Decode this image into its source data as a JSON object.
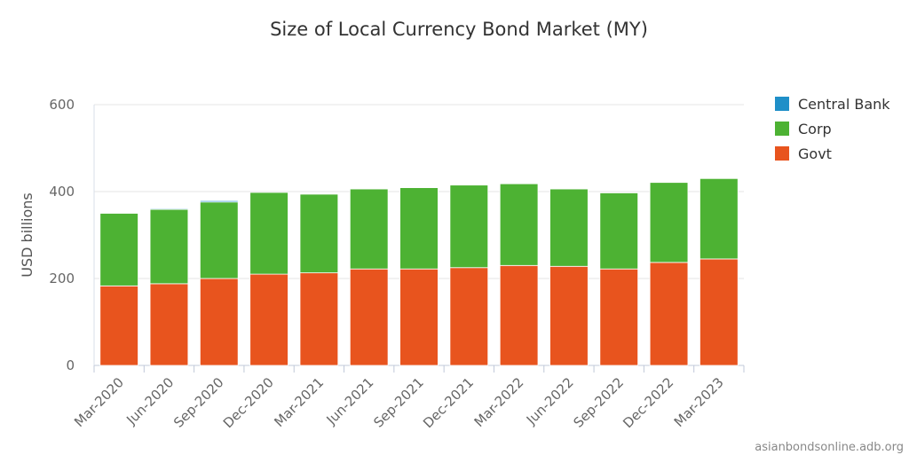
{
  "chart_data": {
    "type": "bar",
    "stacked": true,
    "title": "Size of Local Currency Bond Market (MY)",
    "ylabel": "USD billions",
    "xlabel": "",
    "ylim": [
      0,
      600
    ],
    "yticks": [
      0,
      200,
      400,
      600
    ],
    "categories": [
      "Mar-2020",
      "Jun-2020",
      "Sep-2020",
      "Dec-2020",
      "Mar-2021",
      "Jun-2021",
      "Sep-2021",
      "Dec-2021",
      "Mar-2022",
      "Jun-2022",
      "Sep-2022",
      "Dec-2022",
      "Mar-2023"
    ],
    "series": [
      {
        "name": "Govt",
        "color": "#E8541E",
        "values": [
          183,
          188,
          200,
          210,
          213,
          222,
          222,
          225,
          230,
          228,
          222,
          237,
          245
        ]
      },
      {
        "name": "Corp",
        "color": "#4DB233",
        "values": [
          167,
          171,
          176,
          188,
          181,
          184,
          187,
          190,
          188,
          178,
          175,
          184,
          185
        ]
      },
      {
        "name": "Central Bank",
        "color": "#1F8FC8",
        "values": [
          0,
          2,
          3,
          0,
          0,
          0,
          0,
          0,
          0,
          0,
          0,
          0,
          0
        ]
      }
    ],
    "legend": {
      "position": "right",
      "order": [
        "Central Bank",
        "Corp",
        "Govt"
      ]
    },
    "grid": true,
    "credit": "asianbondsonline.adb.org"
  }
}
